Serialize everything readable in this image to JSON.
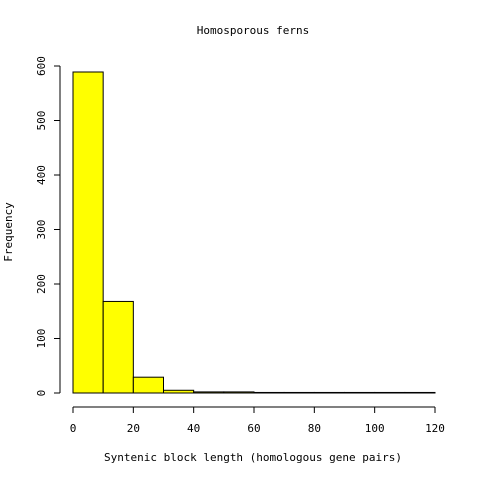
{
  "chart_data": {
    "type": "bar",
    "title": "Homosporous ferns",
    "xlabel": "Syntenic block length (homologous gene pairs)",
    "ylabel": "Frequency",
    "bins": [
      [
        0,
        10
      ],
      [
        10,
        20
      ],
      [
        20,
        30
      ],
      [
        30,
        40
      ],
      [
        40,
        50
      ],
      [
        50,
        60
      ],
      [
        60,
        70
      ],
      [
        70,
        80
      ],
      [
        80,
        90
      ],
      [
        90,
        100
      ],
      [
        100,
        110
      ],
      [
        110,
        120
      ]
    ],
    "values": [
      589,
      168,
      29,
      5,
      2,
      2,
      1,
      1,
      1,
      1,
      1,
      1
    ],
    "xlim": [
      0,
      120
    ],
    "ylim": [
      0,
      600
    ],
    "xticks": [
      0,
      20,
      40,
      60,
      80,
      100,
      120
    ],
    "yticks": [
      0,
      100,
      200,
      300,
      400,
      500,
      600
    ],
    "bar_color": "#ffff00",
    "grid": false,
    "legend": "none"
  }
}
